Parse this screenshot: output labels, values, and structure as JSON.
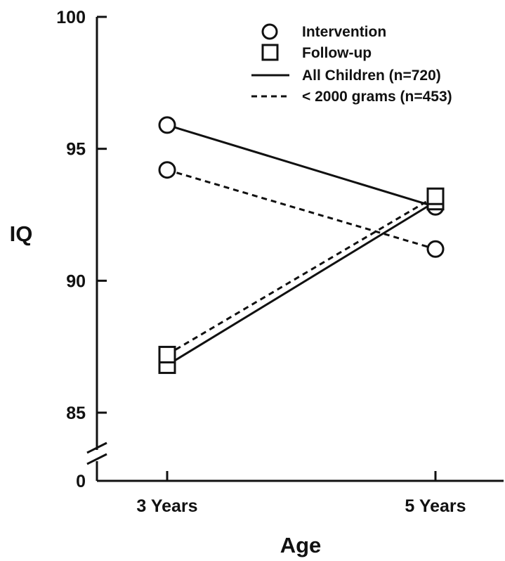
{
  "chart_data": {
    "type": "line",
    "title": "",
    "xlabel": "Age",
    "ylabel": "IQ",
    "categories": [
      "3 Years",
      "5 Years"
    ],
    "y_ticks": [
      "100",
      "95",
      "90",
      "85",
      "0"
    ],
    "ylim": [
      85,
      100
    ],
    "y_axis_break": true,
    "grid": false,
    "legend_position": "top-right",
    "legend": [
      {
        "label": "Intervention",
        "marker": "circle"
      },
      {
        "label": "Follow-up",
        "marker": "square"
      },
      {
        "label": "All Children (n=720)",
        "linestyle": "solid"
      },
      {
        "label": "< 2000 grams (n=453)",
        "linestyle": "dashed"
      }
    ],
    "series": [
      {
        "group": "Intervention",
        "sample": "All Children (n=720)",
        "marker": "circle",
        "linestyle": "solid",
        "values": [
          95.9,
          92.8
        ]
      },
      {
        "group": "Intervention",
        "sample": "< 2000 grams (n=453)",
        "marker": "circle",
        "linestyle": "dashed",
        "values": [
          94.2,
          91.2
        ]
      },
      {
        "group": "Follow-up",
        "sample": "All Children (n=720)",
        "marker": "square",
        "linestyle": "solid",
        "values": [
          86.8,
          93.0
        ]
      },
      {
        "group": "Follow-up",
        "sample": "< 2000 grams (n=453)",
        "marker": "square",
        "linestyle": "dashed",
        "values": [
          87.2,
          93.2
        ]
      }
    ],
    "colors": {
      "ink": "#111111",
      "background": "#ffffff"
    }
  }
}
